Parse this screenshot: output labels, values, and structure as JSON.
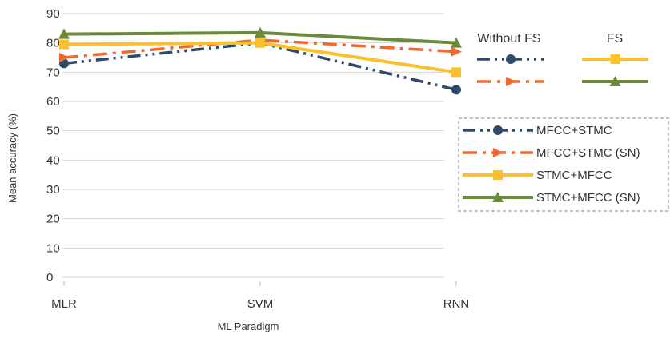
{
  "chart_data": {
    "type": "line",
    "title": "",
    "xlabel": "ML Paradigm",
    "ylabel": "Mean accuracy (%)",
    "categories": [
      "MLR",
      "SVM",
      "RNN"
    ],
    "ylim": [
      0,
      90
    ],
    "yticks": [
      "0",
      "10",
      "20",
      "30",
      "40",
      "50",
      "60",
      "70",
      "80",
      "90"
    ],
    "grid": "horizontal",
    "legend_headers": {
      "without_fs": "Without FS",
      "fs": "FS"
    },
    "series": [
      {
        "name": "MFCC+STMC",
        "values": [
          73,
          80,
          64
        ],
        "color": "#2e4a6b",
        "style": "dash-dot-dot",
        "marker": "circle",
        "group": "without_fs"
      },
      {
        "name": "MFCC+STMC (SN)",
        "values": [
          75,
          81,
          77
        ],
        "color": "#ef6a30",
        "style": "dash-dot",
        "marker": "triangle-right",
        "group": "without_fs"
      },
      {
        "name": "STMC+MFCC",
        "values": [
          79.5,
          80,
          70
        ],
        "color": "#fbc02d",
        "style": "solid",
        "marker": "square",
        "group": "fs"
      },
      {
        "name": "STMC+MFCC (SN)",
        "values": [
          83,
          83.5,
          80
        ],
        "color": "#6a8a3a",
        "style": "solid",
        "marker": "triangle-up",
        "group": "fs"
      }
    ]
  }
}
